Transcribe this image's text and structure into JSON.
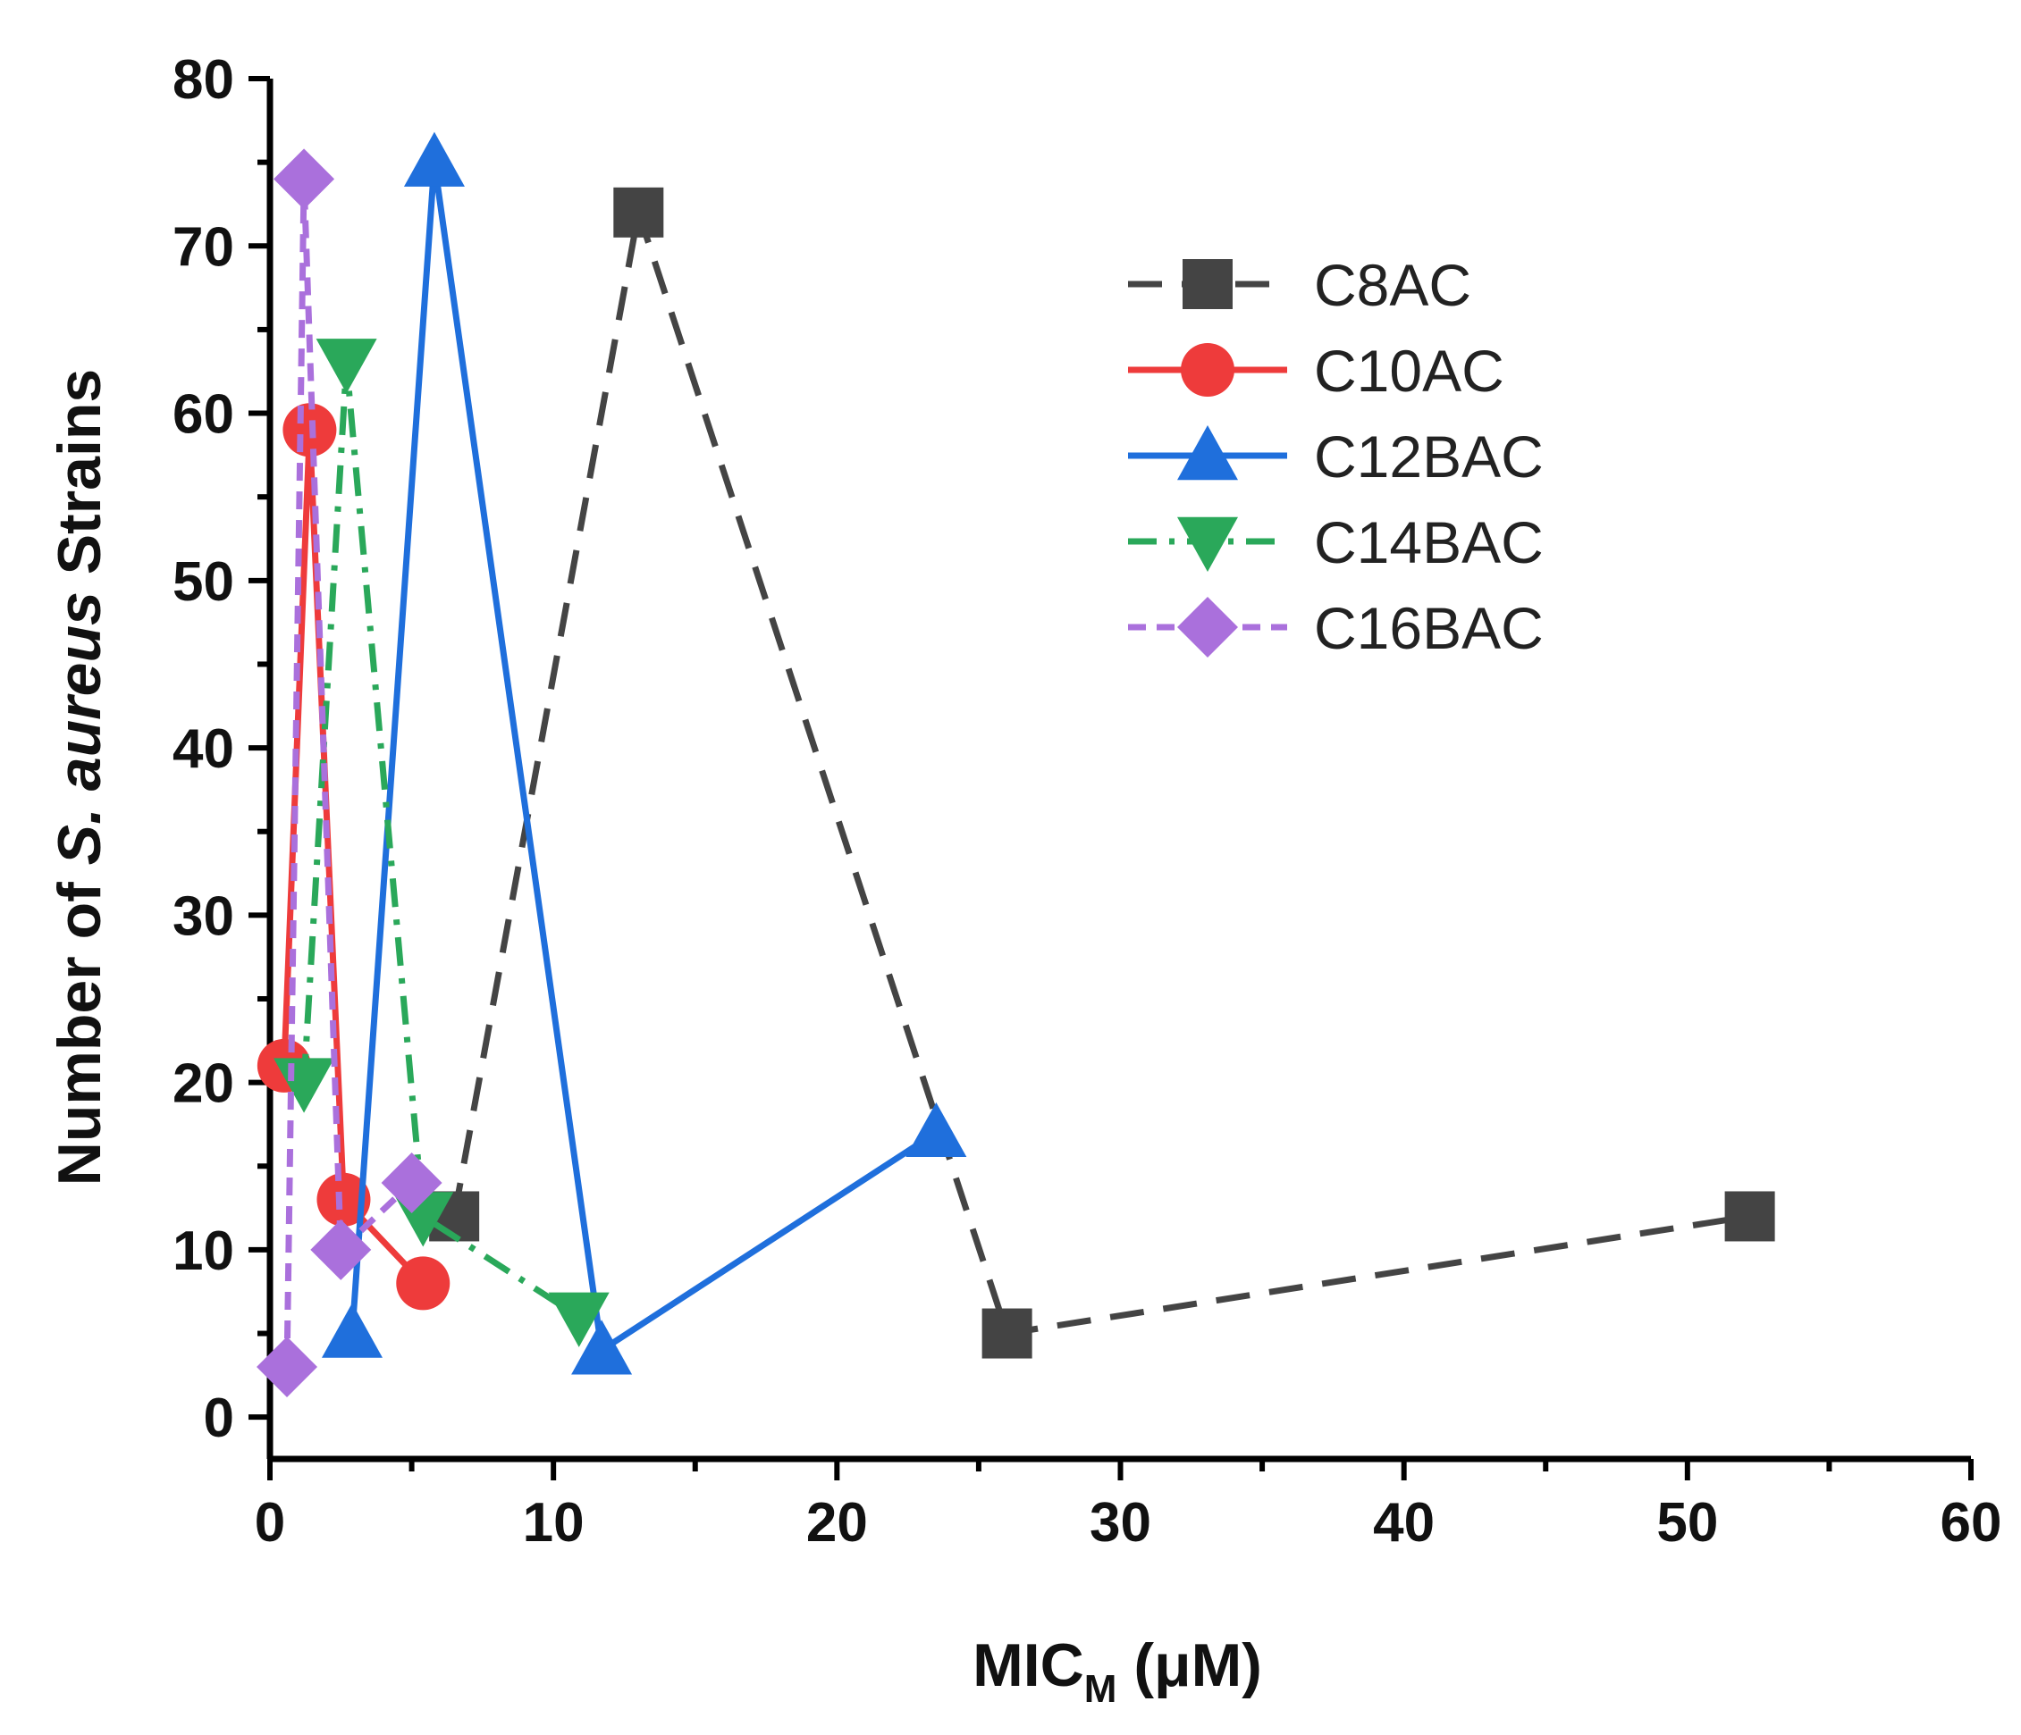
{
  "chart_data": {
    "type": "line",
    "title": "",
    "xlabel": {
      "main": "MIC",
      "sub": "M",
      "unit": " (μM)"
    },
    "ylabel": {
      "pre": "Number of ",
      "italic": "S. aureus",
      "post": " Strains"
    },
    "xlim": [
      0,
      60
    ],
    "ylim": [
      -2.5,
      80
    ],
    "xticks": [
      0,
      10,
      20,
      30,
      40,
      50,
      60
    ],
    "yticks": [
      0,
      10,
      20,
      30,
      40,
      50,
      60,
      70,
      80
    ],
    "legend_position": "top-right",
    "grid": false,
    "series": [
      {
        "name": "C8AC",
        "color": "#444444",
        "marker": "square",
        "dash": "dash",
        "x": [
          6.5,
          13,
          26,
          52.2
        ],
        "y": [
          12,
          72,
          5,
          12
        ]
      },
      {
        "name": "C10AC",
        "color": "#ee3b3b",
        "marker": "circle",
        "dash": "solid",
        "x": [
          0.5,
          1.4,
          2.6,
          5.4
        ],
        "y": [
          21,
          59,
          13,
          8
        ]
      },
      {
        "name": "C12BAC",
        "color": "#1f6fdc",
        "marker": "triangle-up",
        "dash": "solid",
        "x": [
          2.9,
          5.8,
          11.7,
          23.5
        ],
        "y": [
          5,
          75,
          4,
          17
        ]
      },
      {
        "name": "C14BAC",
        "color": "#2aa85a",
        "marker": "triangle-down",
        "dash": "dashdot",
        "x": [
          1.2,
          2.7,
          5.4,
          10.9
        ],
        "y": [
          20,
          63,
          12,
          6
        ]
      },
      {
        "name": "C16BAC",
        "color": "#aa70dc",
        "marker": "diamond",
        "dash": "dashed-fine",
        "x": [
          0.6,
          1.2,
          2.5,
          5.0
        ],
        "y": [
          3,
          74,
          10,
          14
        ]
      }
    ]
  }
}
